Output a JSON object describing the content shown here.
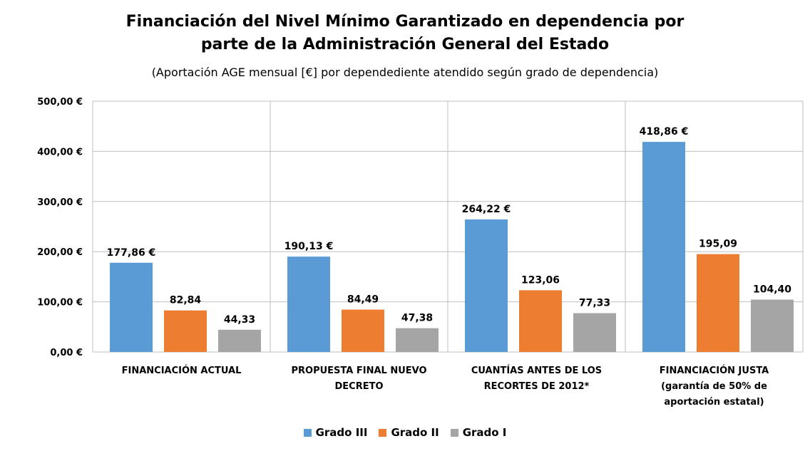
{
  "chart_data": {
    "type": "bar",
    "title_line1": "Financiación  del Nivel Mínimo  Garantizado  en dependencia por",
    "title_line2": "parte de la  Administración  General del Estado",
    "subtitle": "(Aportación AGE mensual [€] por dependediente  atendido según grado de dependencia)",
    "categories": [
      [
        "FINANCIACIÓN ACTUAL"
      ],
      [
        "PROPUESTA FINAL NUEVO",
        "DECRETO"
      ],
      [
        "CUANTÍAS ANTES DE LOS",
        "RECORTES DE 2012*"
      ],
      [
        "FINANCIACIÓN JUSTA",
        "(garantía de 50% de",
        "aportación estatal)"
      ]
    ],
    "series": [
      {
        "name": "Grado III",
        "color": "#5B9BD5",
        "values": [
          177.86,
          190.13,
          264.22,
          418.86
        ],
        "labels": [
          "177,86 €",
          "190,13 €",
          "264,22 €",
          "418,86 €"
        ]
      },
      {
        "name": "Grado II",
        "color": "#ED7D31",
        "values": [
          82.84,
          84.49,
          123.06,
          195.09
        ],
        "labels": [
          "82,84",
          "84,49",
          "123,06",
          "195,09"
        ]
      },
      {
        "name": "Grado I",
        "color": "#A5A5A5",
        "values": [
          44.33,
          47.38,
          77.33,
          104.4
        ],
        "labels": [
          "44,33",
          "47,38",
          "77,33",
          "104,40"
        ]
      }
    ],
    "yticks": [
      "0,00 €",
      "100,00 €",
      "200,00 €",
      "300,00 €",
      "400,00 €",
      "500,00 €"
    ],
    "ylim": [
      0,
      500
    ],
    "grid": true,
    "legend_position": "bottom"
  }
}
